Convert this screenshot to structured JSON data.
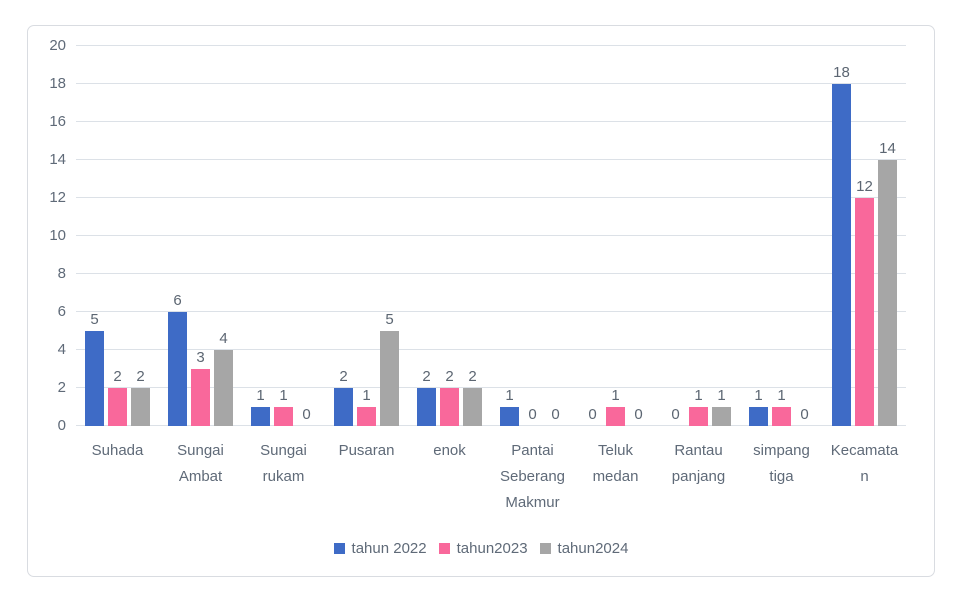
{
  "chart_data": {
    "type": "bar",
    "title": "",
    "xlabel": "",
    "ylabel": "",
    "categories": [
      "Suhada",
      "Sungai Ambat",
      "Sungai rukam",
      "Pusaran",
      "enok",
      "Pantai Seberang Makmur",
      "Teluk medan",
      "Rantau panjang",
      "simpang tiga",
      "Kecamatan"
    ],
    "series": [
      {
        "name": "tahun 2022",
        "color": "#3E6BC6",
        "values": [
          5,
          6,
          1,
          2,
          2,
          1,
          0,
          0,
          1,
          18
        ]
      },
      {
        "name": "tahun2023",
        "color": "#F9689B",
        "values": [
          2,
          3,
          1,
          1,
          2,
          0,
          1,
          1,
          1,
          12
        ]
      },
      {
        "name": "tahun2024",
        "color": "#A6A6A6",
        "values": [
          2,
          4,
          0,
          5,
          2,
          0,
          0,
          1,
          0,
          14
        ]
      }
    ],
    "ylim": [
      0,
      20
    ],
    "ytick_step": 2,
    "grid": true,
    "legend_position": "bottom",
    "show_data_labels": true
  },
  "style": {
    "text_color": "#5f6a78",
    "data_label_color": "#5c6672",
    "gridline_color": "#dce1e7",
    "card_border_color": "#d9dce1",
    "background": "#ffffff"
  }
}
